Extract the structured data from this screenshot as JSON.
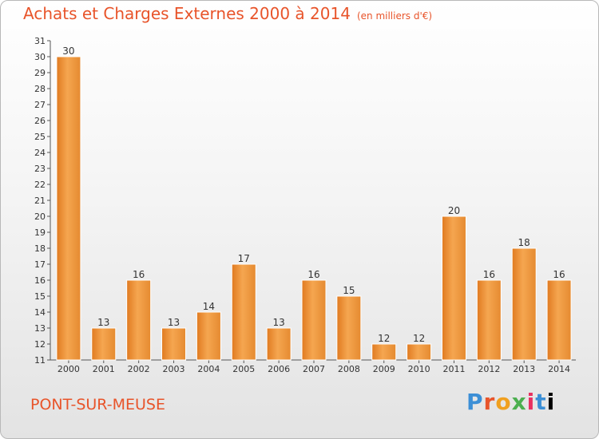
{
  "header": {
    "title": "Achats et Charges Externes 2000 à 2014",
    "unit": "(en milliers d'€)"
  },
  "footer": {
    "town": "PONT-SUR-MEUSE",
    "logo_letters": [
      "P",
      "r",
      "o",
      "x",
      "i",
      "t",
      "i"
    ]
  },
  "colors": {
    "bar_light": "#f5a650",
    "bar_dark": "#e07a20",
    "title": "#e8542a"
  },
  "chart_data": {
    "type": "bar",
    "categories": [
      "2000",
      "2001",
      "2002",
      "2003",
      "2004",
      "2005",
      "2006",
      "2007",
      "2008",
      "2009",
      "2010",
      "2011",
      "2012",
      "2013",
      "2014"
    ],
    "values": [
      30,
      13,
      16,
      13,
      14,
      17,
      13,
      16,
      15,
      12,
      12,
      20,
      16,
      18,
      16
    ],
    "ylim": [
      11,
      31
    ],
    "yticks": [
      11,
      12,
      13,
      14,
      15,
      16,
      17,
      18,
      19,
      20,
      21,
      22,
      23,
      24,
      25,
      26,
      27,
      28,
      29,
      30,
      31
    ],
    "grid": false
  }
}
